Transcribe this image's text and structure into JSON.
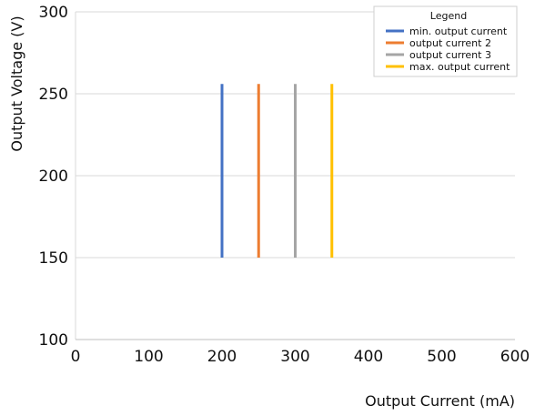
{
  "chart_data": {
    "type": "line",
    "xlabel": "Output Current (mA)",
    "ylabel": "Output Voltage (V)",
    "xlim": [
      0,
      600
    ],
    "ylim": [
      100,
      300
    ],
    "xticks": [
      "0",
      "100",
      "200",
      "300",
      "400",
      "500",
      "600"
    ],
    "yticks": [
      "100",
      "150",
      "200",
      "250",
      "300"
    ],
    "grid": "horizontal",
    "legend": {
      "title": "Legend",
      "placement": "top-right"
    },
    "series": [
      {
        "name": "min. output current",
        "color": "#4472C4",
        "x": [
          200,
          200
        ],
        "y": [
          150,
          256
        ]
      },
      {
        "name": "output current 2",
        "color": "#ED7D31",
        "x": [
          250,
          250
        ],
        "y": [
          150,
          256
        ]
      },
      {
        "name": "output current 3",
        "color": "#A5A5A5",
        "x": [
          300,
          300
        ],
        "y": [
          150,
          256
        ]
      },
      {
        "name": "max. output current",
        "color": "#FFC000",
        "x": [
          350,
          350
        ],
        "y": [
          150,
          256
        ]
      }
    ]
  }
}
